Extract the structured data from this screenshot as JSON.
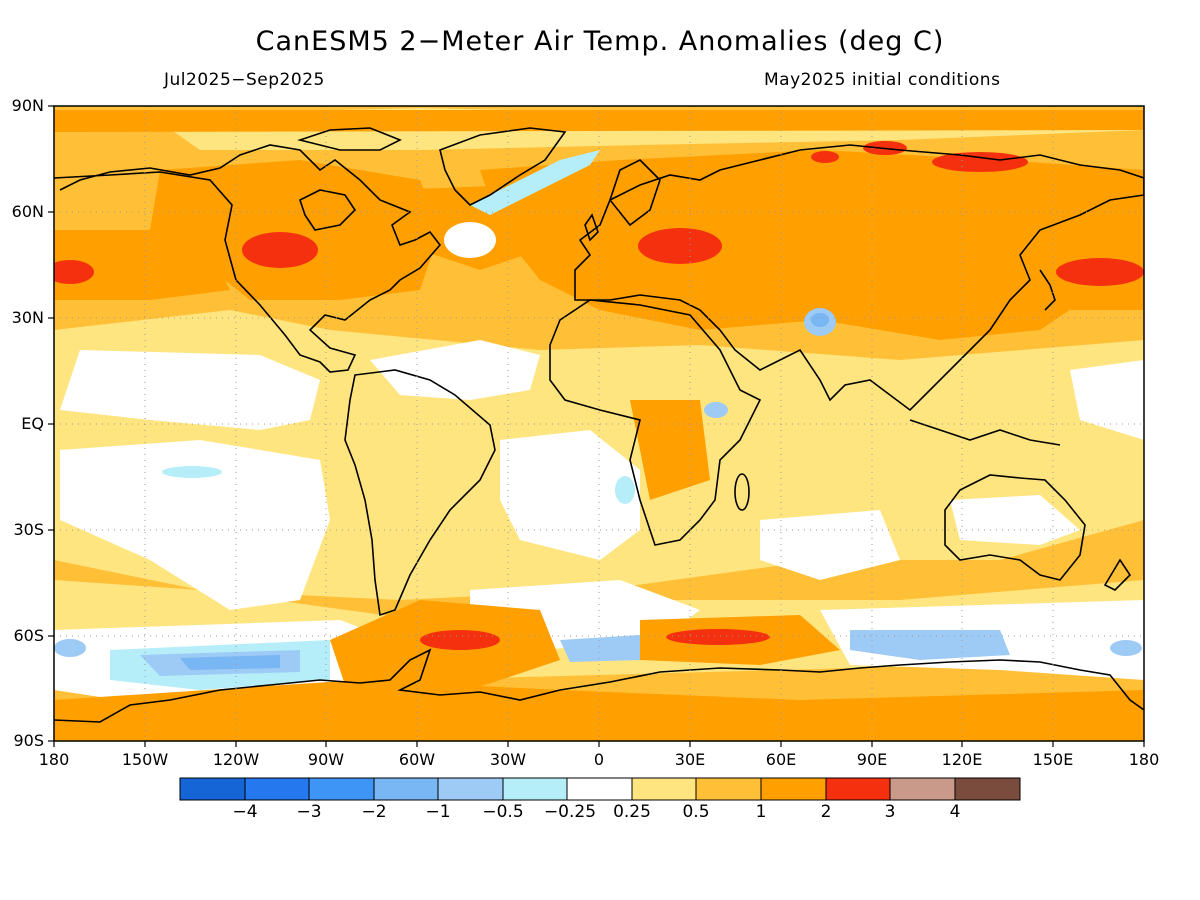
{
  "title": "CanESM5 2-Meter Air Temp. Anomalies (deg C)",
  "period": "Jul2025-Sep2025",
  "init": "May2025 initial conditions",
  "lat_labels": [
    "90N",
    "60N",
    "30N",
    "EQ",
    "30S",
    "60S",
    "90S"
  ],
  "lon_labels": [
    "180",
    "150W",
    "120W",
    "90W",
    "60W",
    "30W",
    "0",
    "30E",
    "60E",
    "90E",
    "120E",
    "150E",
    "180"
  ],
  "colorbar": {
    "labels": [
      "-4",
      "-3",
      "-2",
      "-1",
      "-0.5",
      "-0.25",
      "0.25",
      "0.5",
      "1",
      "2",
      "3",
      "4"
    ],
    "colors": [
      "#1565d6",
      "#2678ee",
      "#3e95f5",
      "#78b6f4",
      "#9ecaf6",
      "#b5eef8",
      "#ffffff",
      "#ffe580",
      "#ffc038",
      "#ff9f00",
      "#f5300e",
      "#c9998a",
      "#7a4c3e"
    ]
  },
  "colors": {
    "coastline": "#000000",
    "grid": "#9a9a9a"
  }
}
